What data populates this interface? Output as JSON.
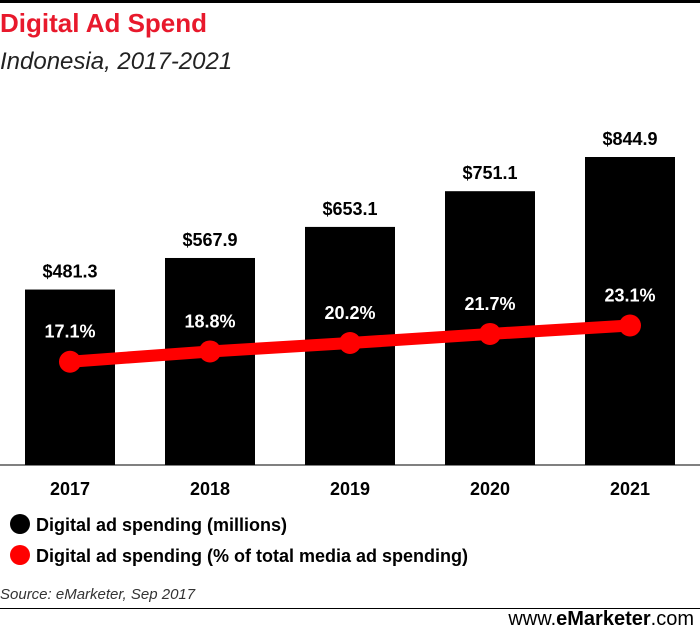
{
  "header": {
    "title": "Digital Ad Spend",
    "subtitle": "Indonesia, 2017-2021"
  },
  "chart_data": {
    "type": "bar",
    "title": "Digital Ad Spend",
    "subtitle": "Indonesia, 2017-2021",
    "categories": [
      "2017",
      "2018",
      "2019",
      "2020",
      "2021"
    ],
    "series": [
      {
        "name": "Digital ad spending (millions)",
        "kind": "bar",
        "values": [
          481.3,
          567.9,
          653.1,
          751.1,
          844.9
        ],
        "labels": [
          "$481.3",
          "$567.9",
          "$653.1",
          "$751.1",
          "$844.9"
        ],
        "color": "#000000"
      },
      {
        "name": "Digital ad spending (% of total media ad spending)",
        "kind": "line",
        "values": [
          17.1,
          18.8,
          20.2,
          21.7,
          23.1
        ],
        "labels": [
          "17.1%",
          "18.8%",
          "20.2%",
          "21.7%",
          "23.1%"
        ],
        "color": "#ff0000"
      }
    ],
    "bar_ylim": [
      0,
      844.9
    ],
    "line_ylim": [
      0,
      51
    ],
    "legend": "bottom"
  },
  "footer": {
    "source": "Source: eMarketer, Sep 2017",
    "brand_prefix": "www.",
    "brand_bold": "eMarketer",
    "brand_suffix": ".com"
  }
}
